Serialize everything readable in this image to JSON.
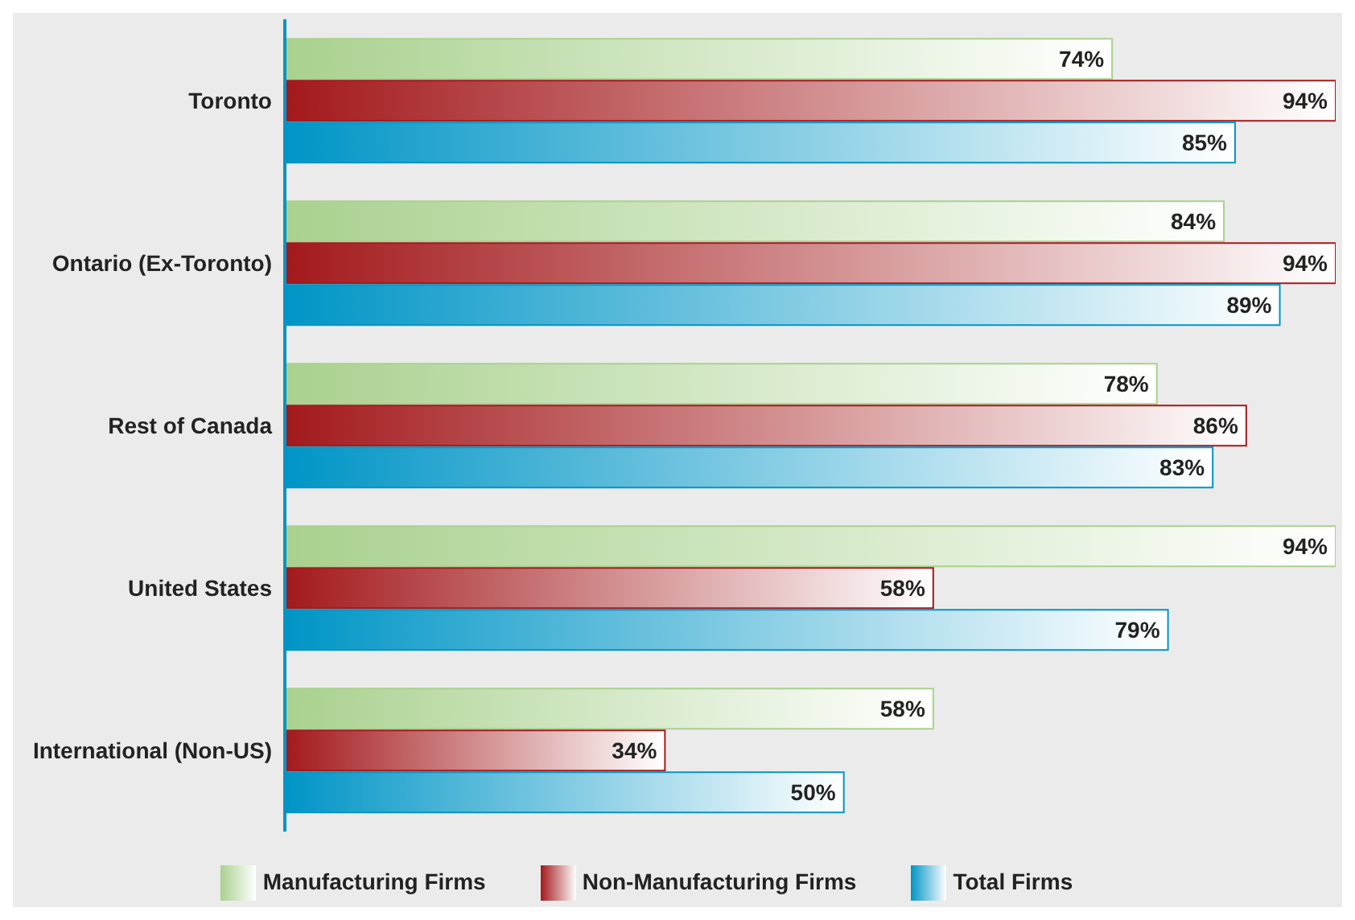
{
  "chart_data": {
    "type": "bar",
    "orientation": "horizontal",
    "categories": [
      "Toronto",
      "Ontario (Ex-Toronto)",
      "Rest of Canada",
      "United States",
      "International (Non-US)"
    ],
    "series": [
      {
        "name": "Manufacturing Firms",
        "color": "#a9d18e",
        "values": [
          74,
          84,
          78,
          94,
          58
        ],
        "value_labels": [
          "74%",
          "84%",
          "78%",
          "94%",
          "58%"
        ]
      },
      {
        "name": "Non-Manufacturing Firms",
        "color": "#a3191c",
        "values": [
          94,
          94,
          86,
          58,
          34
        ],
        "value_labels": [
          "94%",
          "94%",
          "86%",
          "58%",
          "34%"
        ]
      },
      {
        "name": "Total Firms",
        "color": "#0095c6",
        "values": [
          85,
          89,
          83,
          79,
          50
        ],
        "value_labels": [
          "85%",
          "89%",
          "83%",
          "79%",
          "50%"
        ]
      }
    ],
    "relative": false,
    "tick_labels": "y",
    "legend": "bottom"
  }
}
